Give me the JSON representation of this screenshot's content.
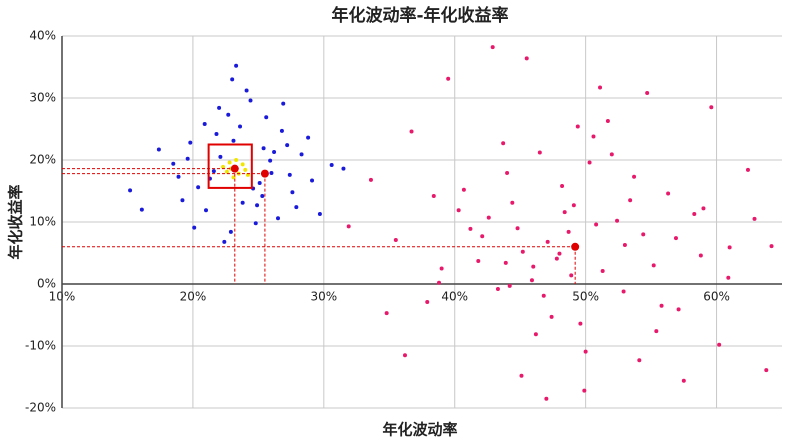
{
  "chart_data": {
    "type": "scatter",
    "title": "年化波动率-年化收益率",
    "x_label": "年化波动率",
    "y_label": "年化收益率",
    "xlim": [
      10,
      65
    ],
    "ylim": [
      -20,
      40
    ],
    "xticks": [
      {
        "value": 10,
        "label": "10%"
      },
      {
        "value": 20,
        "label": "20%"
      },
      {
        "value": 30,
        "label": "30%"
      },
      {
        "value": 40,
        "label": "40%"
      },
      {
        "value": 50,
        "label": "50%"
      },
      {
        "value": 60,
        "label": "60%"
      }
    ],
    "yticks": [
      {
        "value": -20,
        "label": "-20%"
      },
      {
        "value": -10,
        "label": "-10%"
      },
      {
        "value": 0,
        "label": "0%"
      },
      {
        "value": 10,
        "label": "10%"
      },
      {
        "value": 20,
        "label": "20%"
      },
      {
        "value": 30,
        "label": "30%"
      },
      {
        "value": 40,
        "label": "40%"
      }
    ],
    "grid": true,
    "highlight_box": {
      "xlim": [
        21.2,
        24.5
      ],
      "ylim": [
        15.5,
        22.5
      ],
      "color": "#e00000"
    },
    "series": [
      {
        "color": "#e8186a",
        "x": [
          45.2,
          48.7,
          51.3,
          42.6,
          55.8,
          38.4,
          47.1,
          52.9,
          44.0,
          58.3,
          49.6,
          36.7,
          53.4,
          41.8,
          60.2,
          46.5,
          50.8,
          43.3,
          56.9,
          39.5,
          48.2,
          54.1,
          45.9,
          62.4,
          34.8,
          51.7,
          47.8,
          40.3,
          57.5,
          44.8,
          49.1,
          53.0,
          37.9,
          59.6,
          46.2,
          50.3,
          42.1,
          55.2,
          63.8,
          48.9,
          33.6,
          52.4,
          45.5,
          61.0,
          43.7,
          49.9,
          56.3,
          39.0,
          47.4,
          54.7,
          41.2,
          58.8,
          50.0,
          44.4,
          35.5,
          52.0,
          46.8,
          60.9,
          42.9,
          55.4,
          48.4,
          38.8,
          53.7,
          45.1,
          64.2,
          49.4,
          31.9,
          57.1,
          43.9,
          51.1,
          47.0,
          40.7,
          59.0,
          46.0,
          54.4,
          36.2,
          50.6,
          44.2,
          62.9,
          48.0
        ],
        "values": [
          5.2,
          8.4,
          2.1,
          10.7,
          -3.5,
          14.2,
          6.8,
          -1.2,
          17.9,
          11.3,
          -6.4,
          24.6,
          13.5,
          3.7,
          -9.8,
          21.2,
          9.6,
          -0.8,
          7.4,
          33.1,
          15.8,
          -12.3,
          0.6,
          18.4,
          -4.7,
          26.3,
          4.1,
          11.9,
          -15.6,
          9.0,
          12.7,
          6.3,
          -2.9,
          28.5,
          -8.1,
          19.6,
          7.7,
          3.0,
          -13.9,
          1.4,
          16.8,
          10.2,
          36.4,
          5.9,
          22.7,
          -17.2,
          14.6,
          2.5,
          -5.3,
          30.8,
          8.9,
          4.6,
          -10.9,
          13.1,
          7.1,
          20.9,
          -1.9,
          1.0,
          38.2,
          -7.6,
          11.6,
          0.2,
          17.3,
          -14.8,
          6.1,
          25.4,
          9.3,
          -4.1,
          3.4,
          31.7,
          -18.5,
          15.2,
          12.2,
          2.8,
          8.0,
          -11.5,
          23.8,
          -0.3,
          10.5,
          4.9
        ]
      },
      {
        "color": "#1a1adb",
        "x": [
          22.1,
          25.3,
          19.8,
          27.4,
          23.6,
          21.0,
          26.2,
          24.8,
          18.5,
          29.1,
          22.7,
          25.9,
          20.4,
          27.9,
          23.1,
          24.4,
          21.6,
          26.8,
          19.2,
          28.3,
          22.9,
          25.1,
          30.6,
          17.4,
          23.8,
          26.5,
          20.9,
          24.1,
          27.2,
          21.3,
          15.2,
          31.5,
          25.6,
          22.4,
          28.8,
          19.6,
          24.9,
          26.0,
          23.3,
          20.1,
          27.6,
          22.0,
          25.4,
          29.7,
          21.8,
          24.6,
          18.9,
          26.9,
          23.0,
          16.1
        ],
        "values": [
          20.5,
          14.2,
          22.8,
          17.6,
          25.4,
          11.9,
          21.3,
          9.8,
          19.4,
          16.7,
          27.3,
          19.9,
          15.6,
          12.4,
          23.1,
          29.6,
          18.2,
          24.7,
          13.5,
          20.9,
          8.4,
          16.3,
          19.2,
          21.7,
          13.1,
          10.6,
          25.8,
          31.2,
          22.4,
          17.0,
          15.1,
          18.6,
          26.9,
          6.8,
          23.6,
          20.2,
          12.7,
          17.9,
          35.2,
          9.1,
          14.8,
          28.4,
          21.9,
          11.3,
          24.2,
          15.4,
          17.3,
          29.1,
          33.0,
          12.0
        ]
      },
      {
        "color": "#f2e600",
        "x": [
          22.3,
          23.5,
          22.8,
          24.0,
          23.1,
          22.6,
          23.8,
          23.3,
          22.9,
          24.2
        ],
        "values": [
          18.9,
          17.8,
          19.6,
          18.4,
          17.2,
          18.1,
          19.3,
          20.0,
          18.6,
          17.6
        ]
      },
      {
        "color": "#e00000",
        "guides": true,
        "x": [
          23.2,
          25.5,
          49.2
        ],
        "values": [
          18.6,
          17.8,
          6.0
        ]
      }
    ]
  }
}
